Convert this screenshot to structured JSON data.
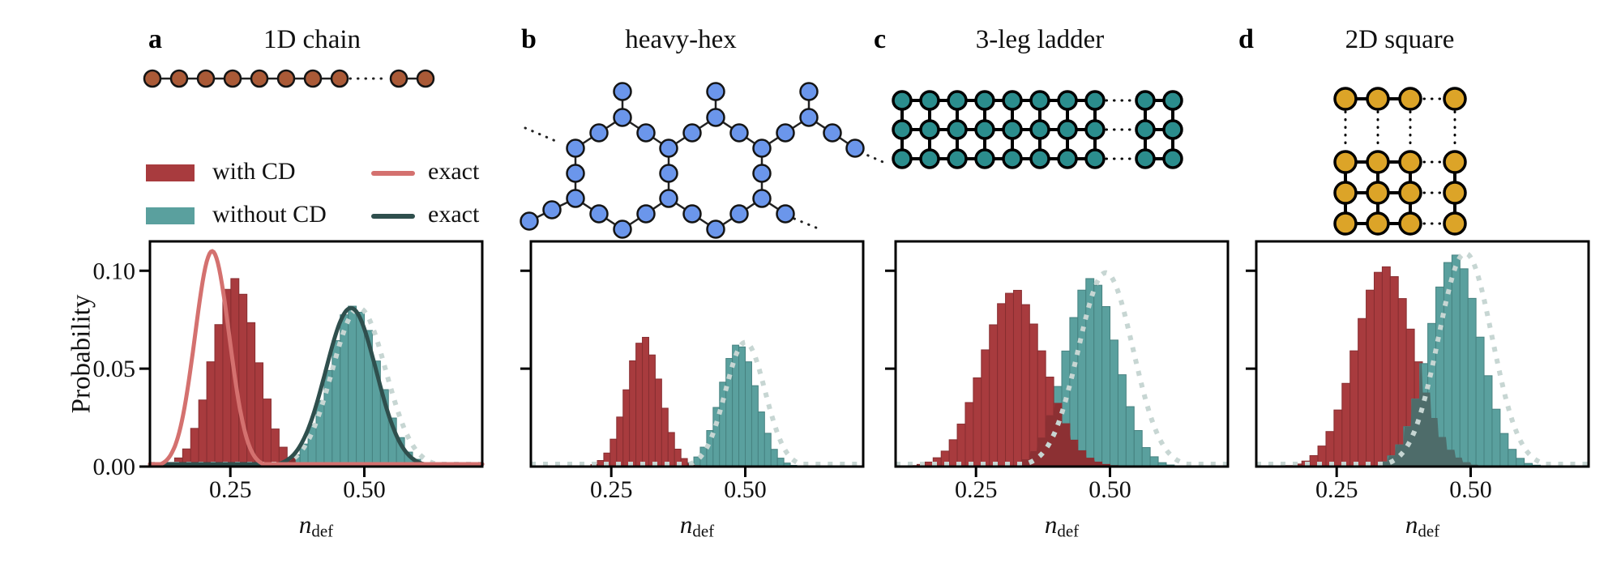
{
  "figure": {
    "ylabel": "Probability",
    "xlabel_base": "n",
    "xlabel_sub": "def",
    "background": "#ffffff",
    "axis_color": "#000000"
  },
  "legend": {
    "items": [
      {
        "label": "with CD",
        "color": "#a83b3e",
        "swatch": "patch"
      },
      {
        "label": "exact",
        "color": "#d4716f",
        "swatch": "line"
      },
      {
        "label": "without CD",
        "color": "#5aa09e",
        "swatch": "patch"
      },
      {
        "label": "exact",
        "color": "#2f4f4d",
        "swatch": "line"
      }
    ]
  },
  "panels": [
    {
      "letter": "a",
      "title": "1D chain",
      "lattice": {
        "type": "chain",
        "node_color": "#aa5a37",
        "node_outline": "#141414",
        "edge_color": "#222222"
      },
      "chart_data": {
        "type": "histogram",
        "xlabel": "n_def",
        "ylabel": "Probability",
        "xlim": [
          0.1,
          0.72
        ],
        "ylim": [
          0,
          0.115
        ],
        "xticks": [
          0.25,
          0.5
        ],
        "yticks": [
          0,
          0.05,
          0.1
        ],
        "ytick_labels": [
          "0.00",
          "0.05",
          "0.10"
        ],
        "overlap_color": "#7f2d30",
        "series": [
          {
            "name": "without CD",
            "kind": "hist",
            "fill": "#5aa09e",
            "edge": "#468280",
            "bin_start": 0.335,
            "bin_width": 0.015,
            "heights": [
              0.0011,
              0.003,
              0.006,
              0.0115,
              0.0213,
              0.0336,
              0.0491,
              0.0643,
              0.0775,
              0.0819,
              0.0788,
              0.0695,
              0.0539,
              0.0393,
              0.0248,
              0.0148,
              0.0074,
              0.0037,
              0.0014
            ]
          },
          {
            "name": "with CD",
            "kind": "hist",
            "fill": "#a83b3e",
            "edge": "#882e31",
            "bin_start": 0.116,
            "bin_width": 0.015,
            "heights": [
              0.0008,
              0.0021,
              0.0044,
              0.009,
              0.0195,
              0.034,
              0.0535,
              0.0725,
              0.0905,
              0.096,
              0.088,
              0.0735,
              0.053,
              0.0345,
              0.0192,
              0.0099,
              0.0043,
              0.0018,
              0.0007
            ]
          },
          {
            "name": "exact",
            "kind": "gauss",
            "style": "dotted",
            "color": "#c7d6d3",
            "center": 0.49,
            "sigma": 0.05,
            "peak": 0.081
          },
          {
            "name": "exact",
            "kind": "gauss",
            "style": "solid",
            "color": "#2f4f4d",
            "center": 0.475,
            "sigma": 0.047,
            "peak": 0.081
          },
          {
            "name": "exact",
            "kind": "gauss",
            "style": "solid",
            "color": "#d4716f",
            "center": 0.216,
            "sigma": 0.032,
            "peak": 0.11
          }
        ]
      }
    },
    {
      "letter": "b",
      "title": "heavy-hex",
      "lattice": {
        "type": "heavyhex",
        "node_color": "#6b96eb",
        "node_outline": "#141414",
        "edge_color": "#222222"
      },
      "chart_data": {
        "type": "histogram",
        "xlabel": "n_def",
        "ylabel": "",
        "xlim": [
          0.1,
          0.72
        ],
        "ylim": [
          0,
          0.115
        ],
        "xticks": [
          0.25,
          0.5
        ],
        "yticks": [
          0.05,
          0.1
        ],
        "overlap_color": "#7f2d30",
        "series": [
          {
            "name": "without CD",
            "kind": "hist",
            "fill": "#5aa09e",
            "edge": "#468280",
            "bin_start": 0.392,
            "bin_width": 0.012,
            "heights": [
              0.002,
              0.0049,
              0.0099,
              0.0184,
              0.0302,
              0.0431,
              0.0552,
              0.062,
              0.0611,
              0.0535,
              0.0413,
              0.0279,
              0.017,
              0.0088,
              0.0043,
              0.0018,
              0.0006
            ]
          },
          {
            "name": "with CD",
            "kind": "hist",
            "fill": "#a83b3e",
            "edge": "#882e31",
            "bin_start": 0.2,
            "bin_width": 0.012,
            "heights": [
              0.0003,
              0.001,
              0.0031,
              0.0069,
              0.014,
              0.0253,
              0.0392,
              0.054,
              0.063,
              0.066,
              0.057,
              0.0447,
              0.0298,
              0.0174,
              0.0089,
              0.0041,
              0.0015,
              0.0005
            ]
          },
          {
            "name": "exact",
            "kind": "gauss",
            "style": "dotted",
            "color": "#c7d6d3",
            "center": 0.5,
            "sigma": 0.037,
            "peak": 0.0635
          }
        ]
      }
    },
    {
      "letter": "c",
      "title": "3-leg ladder",
      "lattice": {
        "type": "ladder",
        "node_color": "#2b8d8d",
        "node_outline": "#000000",
        "edge_color": "#000000"
      },
      "chart_data": {
        "type": "histogram",
        "xlabel": "n_def",
        "ylabel": "",
        "xlim": [
          0.1,
          0.72
        ],
        "ylim": [
          0,
          0.115
        ],
        "xticks": [
          0.25,
          0.5
        ],
        "yticks": [
          0.05,
          0.1
        ],
        "overlap_color": "#8c3033",
        "series": [
          {
            "name": "without CD",
            "kind": "hist",
            "fill": "#5aa09e",
            "edge": "#468280",
            "bin_start": 0.335,
            "bin_width": 0.015,
            "heights": [
              0.0037,
              0.0079,
              0.0148,
              0.0262,
              0.0409,
              0.059,
              0.0761,
              0.0901,
              0.096,
              0.0926,
              0.0817,
              0.0646,
              0.0469,
              0.0306,
              0.0184,
              0.0097,
              0.005,
              0.002,
              0.0008
            ]
          },
          {
            "name": "with CD",
            "kind": "hist",
            "fill": "#a83b3e",
            "edge": "#882e31",
            "bin_start": 0.125,
            "bin_width": 0.015,
            "heights": [
              0.0005,
              0.0011,
              0.0023,
              0.0045,
              0.0079,
              0.0137,
              0.0217,
              0.0327,
              0.0453,
              0.0596,
              0.0724,
              0.0832,
              0.0885,
              0.09,
              0.0827,
              0.0728,
              0.0591,
              0.0457,
              0.0323,
              0.0219,
              0.0135,
              0.0081,
              0.0043,
              0.0023,
              0.0011,
              0.0005
            ]
          },
          {
            "name": "exact",
            "kind": "gauss",
            "style": "dotted",
            "color": "#c7d6d3",
            "center": 0.492,
            "sigma": 0.051,
            "peak": 0.099
          }
        ]
      }
    },
    {
      "letter": "d",
      "title": "2D square",
      "lattice": {
        "type": "square",
        "node_color": "#dca428",
        "node_outline": "#000000",
        "edge_color": "#000000"
      },
      "chart_data": {
        "type": "histogram",
        "xlabel": "n_def",
        "ylabel": "",
        "xlim": [
          0.1,
          0.72
        ],
        "ylim": [
          0,
          0.115
        ],
        "xticks": [
          0.25,
          0.5
        ],
        "yticks": [
          0.05,
          0.1
        ],
        "overlap_color": "#4e6c6a",
        "series": [
          {
            "name": "with CD",
            "kind": "hist",
            "fill": "#a83b3e",
            "edge": "#882e31",
            "bin_start": 0.14,
            "bin_width": 0.015,
            "heights": [
              0.0002,
              0.0005,
              0.0013,
              0.0028,
              0.0056,
              0.0105,
              0.0179,
              0.0289,
              0.0425,
              0.0591,
              0.0756,
              0.0901,
              0.0992,
              0.102,
              0.097,
              0.0858,
              0.0702,
              0.0535,
              0.0378,
              0.0248,
              0.0151,
              0.0086,
              0.0046,
              0.0022,
              0.001,
              0.0004
            ]
          },
          {
            "name": "without CD",
            "kind": "hist",
            "fill": "#5aa09e",
            "edge": "#468280",
            "bin_start": 0.33,
            "bin_width": 0.015,
            "heights": [
              0.0024,
              0.0055,
              0.0111,
              0.0204,
              0.0345,
              0.0526,
              0.0731,
              0.0917,
              0.1042,
              0.108,
              0.101,
              0.0859,
              0.0661,
              0.0464,
              0.0293,
              0.0169,
              0.0088,
              0.0042,
              0.0016,
              0.0007
            ]
          },
          {
            "name": "exact",
            "kind": "gauss",
            "style": "dotted",
            "color": "#c7d6d3",
            "center": 0.49,
            "sigma": 0.05,
            "peak": 0.109
          }
        ]
      }
    }
  ]
}
